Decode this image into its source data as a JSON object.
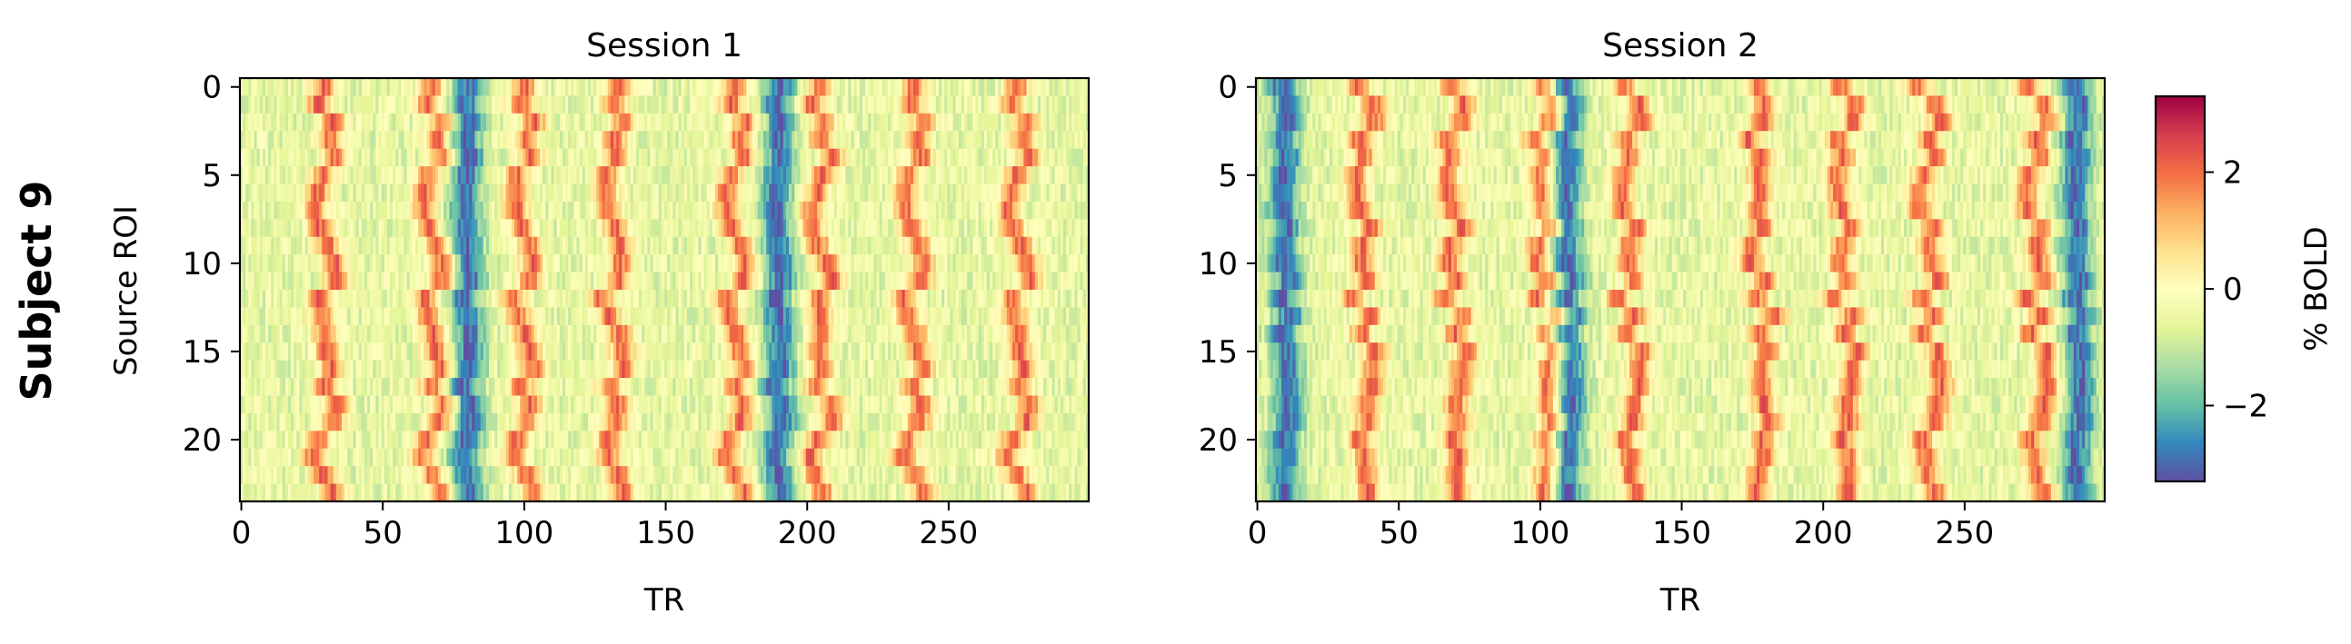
{
  "figure": {
    "row_label": "Subject 9"
  },
  "chart_data": [
    {
      "type": "heatmap",
      "title": "Session 1",
      "xlabel": "TR",
      "ylabel": "Source ROI",
      "rows": 24,
      "columns": 300,
      "xlim": [
        0,
        299
      ],
      "ylim": [
        23.5,
        -0.5
      ],
      "xticks": [
        0,
        50,
        100,
        150,
        200,
        250
      ],
      "yticks": [
        0,
        5,
        10,
        15,
        20
      ],
      "approx_peak_TRs": [
        30,
        68,
        100,
        132,
        175,
        205,
        238,
        275
      ],
      "approx_trough_TRs": [
        80,
        190
      ],
      "colormap": "Spectral_r",
      "color_range": [
        -3.3,
        3.3
      ]
    },
    {
      "type": "heatmap",
      "title": "Session 2",
      "xlabel": "TR",
      "ylabel": "",
      "rows": 24,
      "columns": 300,
      "xlim": [
        0,
        299
      ],
      "ylim": [
        23.5,
        -0.5
      ],
      "xticks": [
        0,
        50,
        100,
        150,
        200,
        250
      ],
      "yticks": [
        0,
        5,
        10,
        15,
        20
      ],
      "approx_peak_TRs": [
        38,
        70,
        102,
        132,
        178,
        208,
        238,
        276
      ],
      "approx_trough_TRs": [
        10,
        110,
        290
      ],
      "colormap": "Spectral_r",
      "color_range": [
        -3.3,
        3.3
      ]
    }
  ],
  "colorbar": {
    "label": "% BOLD",
    "range": [
      -3.3,
      3.3
    ],
    "ticks": [
      -2,
      0,
      2
    ],
    "tick_labels": [
      "−2",
      "0",
      "2"
    ],
    "colors": [
      "#5e4fa2",
      "#3288bd",
      "#66c2a5",
      "#abdda4",
      "#e6f598",
      "#ffffbf",
      "#fee08b",
      "#fdae61",
      "#f46d43",
      "#d53e4f",
      "#9e0142"
    ]
  }
}
